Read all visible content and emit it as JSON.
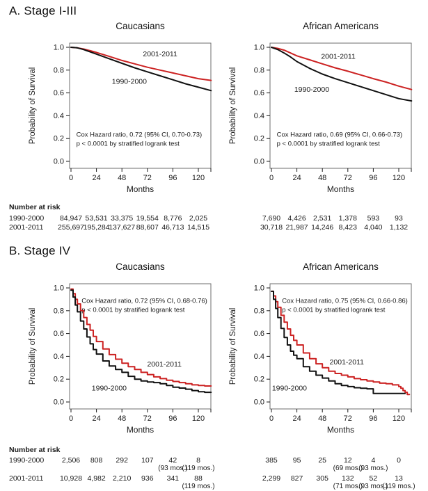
{
  "figure": {
    "sections": [
      {
        "label": "A. Stage I-III"
      },
      {
        "label": "B. Stage IV"
      }
    ],
    "months_ticks": [
      0,
      24,
      48,
      72,
      96,
      120
    ],
    "risk_header": "Number at risk"
  },
  "colors": {
    "curve_2001_2011": "#cc2222",
    "curve_1990_2000": "#111111",
    "axis_frame": "#6e6e6e",
    "text": "#1a1a1a"
  },
  "chart_data": [
    {
      "type": "line",
      "step": false,
      "section": "A. Stage I-III",
      "title": "Caucasians",
      "xlabel": "Months",
      "ylabel": "Probability of Survival",
      "xlim": [
        0,
        132
      ],
      "ylim": [
        0.0,
        1.0
      ],
      "xticks": [
        0,
        24,
        48,
        72,
        96,
        120
      ],
      "yticks": [
        0.0,
        0.2,
        0.4,
        0.6,
        0.8,
        1.0
      ],
      "grid": false,
      "annotation": {
        "lines": [
          "Cox Hazard ratio, 0.72 (95% CI, 0.70-0.73)",
          "p < 0.0001 by stratified logrank test"
        ],
        "x": 5,
        "y": 0.215
      },
      "series": [
        {
          "name": "2001-2011",
          "color": "#cc2222",
          "label_x": 84,
          "label_y": 0.92,
          "x": [
            0,
            6,
            12,
            18,
            24,
            36,
            48,
            60,
            72,
            84,
            96,
            108,
            120,
            132
          ],
          "y": [
            1.0,
            0.995,
            0.985,
            0.97,
            0.955,
            0.92,
            0.885,
            0.855,
            0.825,
            0.8,
            0.775,
            0.75,
            0.725,
            0.71
          ]
        },
        {
          "name": "1990-2000",
          "color": "#111111",
          "label_x": 55,
          "label_y": 0.68,
          "x": [
            0,
            6,
            12,
            18,
            24,
            36,
            48,
            60,
            72,
            84,
            96,
            108,
            120,
            132
          ],
          "y": [
            1.0,
            0.995,
            0.98,
            0.96,
            0.94,
            0.9,
            0.86,
            0.82,
            0.785,
            0.75,
            0.715,
            0.68,
            0.65,
            0.62
          ]
        }
      ]
    },
    {
      "type": "line",
      "step": false,
      "section": "A. Stage I-III",
      "title": "African Americans",
      "xlabel": "Months",
      "ylabel": "Probability of Survival",
      "xlim": [
        0,
        132
      ],
      "ylim": [
        0.0,
        1.0
      ],
      "xticks": [
        0,
        24,
        48,
        72,
        96,
        120
      ],
      "yticks": [
        0.0,
        0.2,
        0.4,
        0.6,
        0.8,
        1.0
      ],
      "grid": false,
      "annotation": {
        "lines": [
          "Cox Hazard ratio, 0.69 (95% CI, 0.66-0.73)",
          "p < 0.0001 by stratified logrank test"
        ],
        "x": 5,
        "y": 0.215
      },
      "series": [
        {
          "name": "2001-2011",
          "color": "#cc2222",
          "label_x": 63,
          "label_y": 0.9,
          "x": [
            0,
            6,
            12,
            18,
            24,
            36,
            48,
            60,
            72,
            84,
            96,
            108,
            120,
            132
          ],
          "y": [
            1.0,
            0.99,
            0.975,
            0.95,
            0.925,
            0.89,
            0.855,
            0.82,
            0.79,
            0.758,
            0.725,
            0.695,
            0.66,
            0.63
          ]
        },
        {
          "name": "1990-2000",
          "color": "#111111",
          "label_x": 38,
          "label_y": 0.61,
          "x": [
            0,
            6,
            12,
            18,
            24,
            36,
            48,
            60,
            72,
            84,
            96,
            108,
            120,
            132
          ],
          "y": [
            1.0,
            0.98,
            0.95,
            0.915,
            0.875,
            0.815,
            0.765,
            0.725,
            0.69,
            0.655,
            0.62,
            0.585,
            0.55,
            0.53
          ]
        }
      ]
    },
    {
      "type": "line",
      "step": true,
      "section": "B. Stage IV",
      "title": "Caucasians",
      "xlabel": "Months",
      "ylabel": "Probability of Survival",
      "xlim": [
        0,
        132
      ],
      "ylim": [
        0.0,
        1.0
      ],
      "xticks": [
        0,
        24,
        48,
        72,
        96,
        120
      ],
      "yticks": [
        0.0,
        0.2,
        0.4,
        0.6,
        0.8,
        1.0
      ],
      "grid": false,
      "annotation": {
        "lines": [
          "Cox Hazard ratio, 0.72 (95% CI, 0.68-0.76)",
          "p < 0.0001 by stratified logrank test"
        ],
        "x": 10,
        "y": 0.87
      },
      "series": [
        {
          "name": "2001-2011",
          "color": "#cc2222",
          "label_x": 88,
          "label_y": 0.31,
          "x": [
            0,
            2,
            4,
            6,
            9,
            12,
            15,
            18,
            21,
            24,
            30,
            36,
            42,
            48,
            54,
            60,
            66,
            72,
            78,
            84,
            90,
            96,
            102,
            108,
            114,
            120,
            126,
            132
          ],
          "y": [
            0.99,
            0.95,
            0.9,
            0.86,
            0.8,
            0.74,
            0.68,
            0.63,
            0.575,
            0.53,
            0.465,
            0.415,
            0.375,
            0.34,
            0.31,
            0.285,
            0.26,
            0.24,
            0.22,
            0.205,
            0.19,
            0.18,
            0.17,
            0.16,
            0.15,
            0.145,
            0.14,
            0.14
          ]
        },
        {
          "name": "1990-2000",
          "color": "#111111",
          "label_x": 36,
          "label_y": 0.1,
          "x": [
            0,
            2,
            4,
            6,
            9,
            12,
            15,
            18,
            21,
            24,
            30,
            36,
            42,
            48,
            54,
            60,
            66,
            72,
            78,
            84,
            90,
            96,
            102,
            108,
            114,
            120,
            126,
            132
          ],
          "y": [
            0.98,
            0.92,
            0.85,
            0.79,
            0.71,
            0.64,
            0.57,
            0.51,
            0.46,
            0.42,
            0.36,
            0.315,
            0.285,
            0.26,
            0.225,
            0.2,
            0.185,
            0.175,
            0.17,
            0.16,
            0.145,
            0.13,
            0.122,
            0.112,
            0.1,
            0.09,
            0.085,
            0.085
          ]
        }
      ]
    },
    {
      "type": "line",
      "step": true,
      "section": "B. Stage IV",
      "title": "African Americans",
      "xlabel": "Months",
      "ylabel": "Probability of Survival",
      "xlim": [
        0,
        132
      ],
      "ylim": [
        0.0,
        1.0
      ],
      "xticks": [
        0,
        24,
        48,
        72,
        96,
        120
      ],
      "yticks": [
        0.0,
        0.2,
        0.4,
        0.6,
        0.8,
        1.0
      ],
      "grid": false,
      "annotation": {
        "lines": [
          "Cox Hazard ratio, 0.75 (95% CI, 0.66-0.86)",
          "p < 0.0001 by stratified logrank test"
        ],
        "x": 10,
        "y": 0.87
      },
      "series": [
        {
          "name": "2001-2011",
          "color": "#cc2222",
          "label_x": 71,
          "label_y": 0.33,
          "x": [
            0,
            2,
            4,
            6,
            9,
            12,
            15,
            18,
            21,
            24,
            30,
            36,
            42,
            48,
            54,
            60,
            66,
            72,
            78,
            84,
            90,
            96,
            102,
            108,
            114,
            120,
            122,
            124,
            126,
            128,
            130
          ],
          "y": [
            0.97,
            0.93,
            0.88,
            0.83,
            0.76,
            0.7,
            0.64,
            0.585,
            0.54,
            0.5,
            0.43,
            0.38,
            0.335,
            0.3,
            0.27,
            0.25,
            0.235,
            0.22,
            0.205,
            0.195,
            0.185,
            0.175,
            0.165,
            0.16,
            0.15,
            0.135,
            0.12,
            0.1,
            0.085,
            0.065,
            0.065
          ]
        },
        {
          "name": "1990-2000",
          "color": "#111111",
          "label_x": 17,
          "label_y": 0.1,
          "x": [
            0,
            2,
            4,
            6,
            9,
            12,
            15,
            18,
            21,
            24,
            30,
            36,
            42,
            48,
            54,
            60,
            66,
            72,
            78,
            84,
            90,
            96,
            102,
            108,
            114,
            120,
            126
          ],
          "y": [
            0.97,
            0.9,
            0.82,
            0.74,
            0.645,
            0.565,
            0.5,
            0.445,
            0.41,
            0.38,
            0.31,
            0.27,
            0.235,
            0.21,
            0.185,
            0.16,
            0.145,
            0.135,
            0.125,
            0.12,
            0.115,
            0.075,
            0.075,
            0.075,
            0.075,
            0.075,
            0.075
          ]
        }
      ]
    }
  ],
  "risk_tables": [
    {
      "section": "A. Stage I-III",
      "header": "Number at risk",
      "rows": [
        {
          "label": "1990-2000",
          "left": [
            "84,947",
            "53,531",
            "33,375",
            "19,554",
            "8,776",
            "2,025"
          ],
          "right": [
            "7,690",
            "4,426",
            "2,531",
            "1,378",
            "593",
            "93"
          ]
        },
        {
          "label": "2001-2011",
          "left": [
            "255,697",
            "195,284",
            "137,627",
            "88,607",
            "46,713",
            "14,515"
          ],
          "right": [
            "30,718",
            "21,987",
            "14,246",
            "8,423",
            "4,040",
            "1,132"
          ]
        }
      ]
    },
    {
      "section": "B. Stage IV",
      "header": "Number at risk",
      "rows": [
        {
          "label": "1990-2000",
          "left": [
            "2,506",
            "808",
            "292",
            "107",
            "42",
            "8"
          ],
          "left_notes": [
            "",
            "",
            "",
            "",
            "(93 mos.)",
            "(119 mos.)"
          ],
          "right": [
            "385",
            "95",
            "25",
            "12",
            "4",
            "0"
          ],
          "right_notes": [
            "",
            "",
            "",
            "(69 mos.)",
            "(93 mos.)",
            ""
          ]
        },
        {
          "label": "2001-2011",
          "left": [
            "10,928",
            "4,982",
            "2,210",
            "936",
            "341",
            "88"
          ],
          "left_notes": [
            "",
            "",
            "",
            "",
            "",
            "(119 mos.)"
          ],
          "right": [
            "2,299",
            "827",
            "305",
            "132",
            "52",
            "13"
          ],
          "right_notes": [
            "",
            "",
            "",
            "(71 mos.)",
            "(93 mos.)",
            "(119 mos.)"
          ]
        }
      ]
    }
  ]
}
